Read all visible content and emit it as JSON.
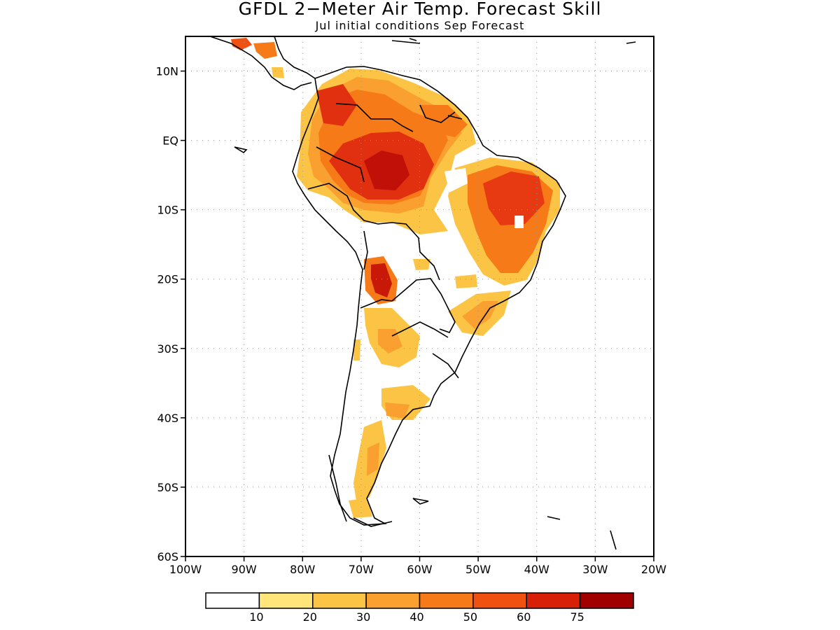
{
  "title": "GFDL 2−Meter Air Temp. Forecast Skill",
  "subtitle": "Jul initial conditions  Sep Forecast",
  "map": {
    "region": "South America",
    "lon_range": [
      -100,
      -20
    ],
    "lat_range": [
      -60,
      15
    ],
    "gridlines": "dotted",
    "lat_ticks": [
      {
        "value": 10,
        "label": "10N"
      },
      {
        "value": 0,
        "label": "EQ"
      },
      {
        "value": -10,
        "label": "10S"
      },
      {
        "value": -20,
        "label": "20S"
      },
      {
        "value": -30,
        "label": "30S"
      },
      {
        "value": -40,
        "label": "40S"
      },
      {
        "value": -50,
        "label": "50S"
      },
      {
        "value": -60,
        "label": "60S"
      }
    ],
    "lon_ticks": [
      {
        "value": -100,
        "label": "100W"
      },
      {
        "value": -90,
        "label": "90W"
      },
      {
        "value": -80,
        "label": "80W"
      },
      {
        "value": -70,
        "label": "70W"
      },
      {
        "value": -60,
        "label": "60W"
      },
      {
        "value": -50,
        "label": "50W"
      },
      {
        "value": -40,
        "label": "40W"
      },
      {
        "value": -30,
        "label": "30W"
      },
      {
        "value": -20,
        "label": "20W"
      }
    ],
    "skill_regions": [
      {
        "name": "amazon-core",
        "level": 5,
        "color": "#e03010"
      },
      {
        "name": "amazon-peak",
        "level": 6,
        "color": "#c01008"
      },
      {
        "name": "northeast-brazil",
        "level": 5,
        "color": "#e83a12"
      },
      {
        "name": "bolivia",
        "level": 6,
        "color": "#c81808"
      },
      {
        "name": "southeast-brazil",
        "level": 3,
        "color": "#f9a73a"
      },
      {
        "name": "patagonia",
        "level": 2,
        "color": "#fcc444"
      }
    ]
  },
  "legend": {
    "labels": [
      "10",
      "20",
      "30",
      "40",
      "50",
      "60",
      "75"
    ],
    "colors": [
      "#ffffff",
      "#ffe57a",
      "#fcc444",
      "#f9a030",
      "#f67a18",
      "#f05010",
      "#d82008",
      "#a00000"
    ]
  }
}
